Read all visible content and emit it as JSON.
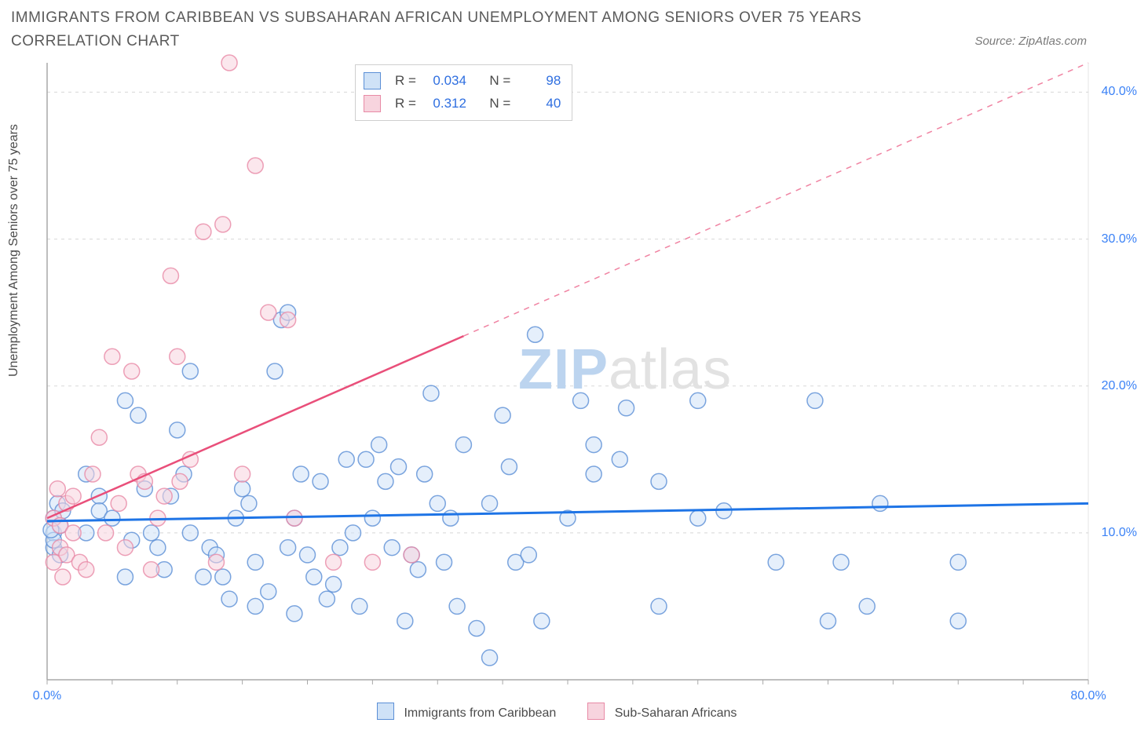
{
  "title": "IMMIGRANTS FROM CARIBBEAN VS SUBSAHARAN AFRICAN UNEMPLOYMENT AMONG SENIORS OVER 75 YEARS CORRELATION CHART",
  "source": "Source: ZipAtlas.com",
  "watermark_zip": "ZIP",
  "watermark_atlas": "atlas",
  "chart": {
    "type": "scatter",
    "ylabel": "Unemployment Among Seniors over 75 years",
    "background_color": "#ffffff",
    "grid_color": "#d8d8d8",
    "axis_line_color": "#a8a8a8",
    "tick_label_color": "#3b82f6",
    "xlim": [
      0,
      80
    ],
    "ylim": [
      0,
      42
    ],
    "xtick_step": 5,
    "ytick_step": 10,
    "xtick_labels": {
      "0": "0.0%",
      "80": "80.0%"
    },
    "ytick_labels": {
      "10": "10.0%",
      "20": "20.0%",
      "30": "30.0%",
      "40": "40.0%"
    },
    "series": [
      {
        "id": "caribbean",
        "label": "Immigrants from Caribbean",
        "fill": "#cfe2f7",
        "fill_opacity": 0.55,
        "stroke": "#5b8fd6",
        "stroke_opacity": 0.8,
        "marker_radius": 10,
        "trend_color": "#1e74e6",
        "trend_width": 3,
        "trend_y_start": 10.8,
        "trend_y_end": 12.0,
        "r_value": "0.034",
        "n_value": "98",
        "points": [
          [
            0.5,
            10
          ],
          [
            0.5,
            11
          ],
          [
            0.5,
            9
          ],
          [
            1,
            10.5
          ],
          [
            0.8,
            12
          ],
          [
            1,
            8.5
          ],
          [
            0.5,
            9.5
          ],
          [
            1.2,
            11.5
          ],
          [
            0.3,
            10.2
          ],
          [
            6,
            19
          ],
          [
            4,
            12.5
          ],
          [
            3,
            10
          ],
          [
            3,
            14
          ],
          [
            4,
            11.5
          ],
          [
            5,
            11
          ],
          [
            6,
            7
          ],
          [
            6.5,
            9.5
          ],
          [
            7,
            18
          ],
          [
            7.5,
            13
          ],
          [
            8,
            10
          ],
          [
            8.5,
            9
          ],
          [
            9,
            7.5
          ],
          [
            9.5,
            12.5
          ],
          [
            10,
            17
          ],
          [
            10.5,
            14
          ],
          [
            11,
            10
          ],
          [
            11,
            21
          ],
          [
            12,
            7
          ],
          [
            12.5,
            9
          ],
          [
            13,
            8.5
          ],
          [
            13.5,
            7
          ],
          [
            14,
            5.5
          ],
          [
            14.5,
            11
          ],
          [
            15,
            13
          ],
          [
            15.5,
            12
          ],
          [
            16,
            5
          ],
          [
            16,
            8
          ],
          [
            17,
            6
          ],
          [
            17.5,
            21
          ],
          [
            18,
            24.5
          ],
          [
            18.5,
            25
          ],
          [
            18.5,
            9
          ],
          [
            19,
            4.5
          ],
          [
            19,
            11
          ],
          [
            19.5,
            14
          ],
          [
            20,
            8.5
          ],
          [
            20.5,
            7
          ],
          [
            21,
            13.5
          ],
          [
            21.5,
            5.5
          ],
          [
            22,
            6.5
          ],
          [
            22.5,
            9
          ],
          [
            23,
            15
          ],
          [
            23.5,
            10
          ],
          [
            24,
            5
          ],
          [
            24.5,
            15
          ],
          [
            25,
            11
          ],
          [
            25.5,
            16
          ],
          [
            26,
            13.5
          ],
          [
            26.5,
            9
          ],
          [
            27,
            14.5
          ],
          [
            27.5,
            4
          ],
          [
            28,
            8.5
          ],
          [
            28.5,
            7.5
          ],
          [
            29,
            14
          ],
          [
            29.5,
            19.5
          ],
          [
            30,
            12
          ],
          [
            30.5,
            8
          ],
          [
            31,
            11
          ],
          [
            31.5,
            5
          ],
          [
            32,
            16
          ],
          [
            33,
            3.5
          ],
          [
            34,
            12
          ],
          [
            34,
            1.5
          ],
          [
            35,
            18
          ],
          [
            35.5,
            14.5
          ],
          [
            36,
            8
          ],
          [
            37,
            8.5
          ],
          [
            37.5,
            23.5
          ],
          [
            38,
            4
          ],
          [
            40,
            11
          ],
          [
            41,
            19
          ],
          [
            42,
            14
          ],
          [
            42,
            16
          ],
          [
            44,
            15
          ],
          [
            44.5,
            18.5
          ],
          [
            47,
            13.5
          ],
          [
            47,
            5
          ],
          [
            50,
            19
          ],
          [
            50,
            11
          ],
          [
            52,
            11.5
          ],
          [
            56,
            8
          ],
          [
            59,
            19
          ],
          [
            60,
            4
          ],
          [
            61,
            8
          ],
          [
            63,
            5
          ],
          [
            64,
            12
          ],
          [
            70,
            4
          ],
          [
            70,
            8
          ]
        ]
      },
      {
        "id": "subsaharan",
        "label": "Sub-Saharan Africans",
        "fill": "#f7d4de",
        "fill_opacity": 0.55,
        "stroke": "#e88aa6",
        "stroke_opacity": 0.8,
        "marker_radius": 10,
        "trend_color": "#e94f7a",
        "trend_width": 2.5,
        "trend_dash_split": 0.4,
        "trend_y_start": 11,
        "trend_y_end": 42,
        "r_value": "0.312",
        "n_value": "40",
        "points": [
          [
            0.5,
            11
          ],
          [
            1,
            10.5
          ],
          [
            1,
            9
          ],
          [
            1.5,
            12
          ],
          [
            1.5,
            8.5
          ],
          [
            0.8,
            13
          ],
          [
            0.5,
            8
          ],
          [
            1.2,
            7
          ],
          [
            2,
            10
          ],
          [
            2,
            12.5
          ],
          [
            2.5,
            8
          ],
          [
            3,
            7.5
          ],
          [
            3.5,
            14
          ],
          [
            4,
            16.5
          ],
          [
            4.5,
            10
          ],
          [
            5,
            22
          ],
          [
            5.5,
            12
          ],
          [
            6,
            9
          ],
          [
            6.5,
            21
          ],
          [
            7,
            14
          ],
          [
            7.5,
            13.5
          ],
          [
            8,
            7.5
          ],
          [
            8.5,
            11
          ],
          [
            9,
            12.5
          ],
          [
            9.5,
            27.5
          ],
          [
            10,
            22
          ],
          [
            10.2,
            13.5
          ],
          [
            11,
            15
          ],
          [
            12,
            30.5
          ],
          [
            13,
            8
          ],
          [
            13.5,
            31
          ],
          [
            14,
            42
          ],
          [
            15,
            14
          ],
          [
            16,
            35
          ],
          [
            17,
            25
          ],
          [
            18.5,
            24.5
          ],
          [
            19,
            11
          ],
          [
            22,
            8
          ],
          [
            25,
            8
          ],
          [
            28,
            8.5
          ]
        ]
      }
    ]
  },
  "stat_legend": {
    "r_label": "R =",
    "n_label": "N ="
  }
}
